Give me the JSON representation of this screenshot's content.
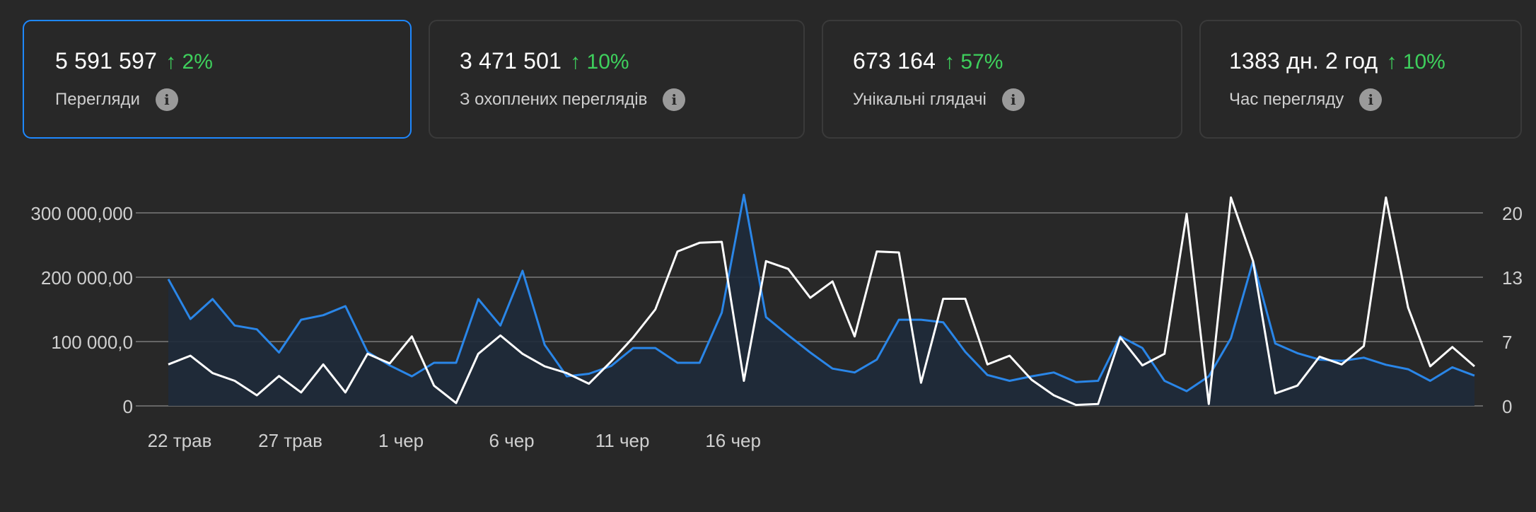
{
  "metrics": [
    {
      "value": "5 591 597",
      "change": "↑ 2%",
      "label": "Перегляди",
      "active": true
    },
    {
      "value": "3 471 501",
      "change": "↑ 10%",
      "label": "З охоплених переглядів",
      "active": false
    },
    {
      "value": "673 164",
      "change": "↑ 57%",
      "label": "Унікальні глядачі",
      "active": false
    },
    {
      "value": "1383 дн. 2 год",
      "change": "↑ 10%",
      "label": "Час перегляду",
      "active": false
    }
  ],
  "info_icon": "info-icon",
  "colors": {
    "background": "#282828",
    "active_border": "#1e88ff",
    "positive_change": "#3ecf5c",
    "series_blue": "#2a86e8",
    "series_white": "#ffffff",
    "gridline": "#8a8a8a"
  },
  "chart_data": {
    "type": "line",
    "x_tick_labels": [
      "22 трав",
      "27 трав",
      "1 чер",
      "6 чер",
      "11 чер",
      "16 чер"
    ],
    "left_axis": {
      "tick_labels": [
        "0",
        "100 000,0",
        "200 000,00",
        "300 000,000"
      ],
      "range": [
        0,
        300000
      ]
    },
    "right_axis": {
      "tick_labels": [
        "0",
        "7",
        "13",
        "20"
      ],
      "range": [
        0,
        20
      ]
    },
    "grid": true,
    "series": [
      {
        "axis": "left",
        "color": "#2a86e8",
        "area": true,
        "values": [
          197000,
          135000,
          166000,
          125000,
          119000,
          83000,
          134000,
          141000,
          155000,
          84000,
          63000,
          46000,
          67000,
          67000,
          166000,
          125000,
          210000,
          95000,
          46000,
          50000,
          62000,
          90000,
          90000,
          67000,
          67000,
          145000,
          328000,
          138000,
          110000,
          83000,
          58000,
          52000,
          72000,
          134000,
          134000,
          130000,
          84000,
          48000,
          39000,
          46000,
          52000,
          37000,
          39000,
          108000,
          90000,
          39000,
          23000,
          46000,
          105000,
          225000,
          97000,
          82000,
          72000,
          70000,
          75000,
          64000,
          57000,
          39000,
          60000,
          47000
        ]
      },
      {
        "axis": "right",
        "color": "#ffffff",
        "area": false,
        "values": [
          4.3,
          5.2,
          3.4,
          2.6,
          1.1,
          3.1,
          1.4,
          4.3,
          1.4,
          5.4,
          4.4,
          7.2,
          2.1,
          0.3,
          5.4,
          7.3,
          5.4,
          4.1,
          3.4,
          2.3,
          4.6,
          7.1,
          10.0,
          16.0,
          16.9,
          17.0,
          2.6,
          15.0,
          14.2,
          11.2,
          12.9,
          7.2,
          16.0,
          15.9,
          2.4,
          11.1,
          11.1,
          4.3,
          5.2,
          2.7,
          1.1,
          0.1,
          0.2,
          7.1,
          4.2,
          5.4,
          19.9,
          0.2,
          21.6,
          15.0,
          1.3,
          2.1,
          5.1,
          4.3,
          6.2,
          21.6,
          10.2,
          4.1,
          6.1,
          4.1
        ]
      }
    ]
  }
}
